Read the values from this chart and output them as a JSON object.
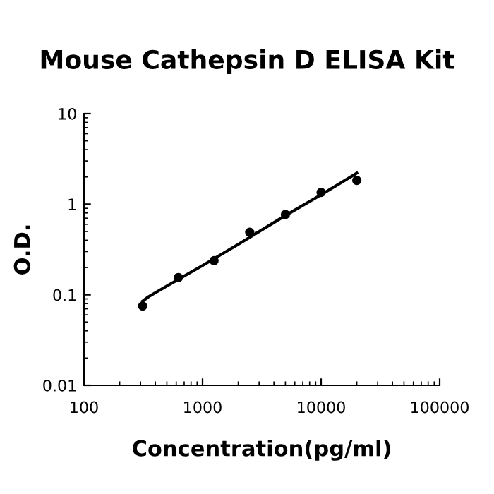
{
  "chart_data": {
    "type": "scatter",
    "title": "Mouse Cathepsin D ELISA Kit",
    "xlabel": "Concentration(pg/ml)",
    "ylabel": "O.D.",
    "log": "xy",
    "xlim": [
      100,
      100000
    ],
    "xticks": [
      100,
      1000,
      10000,
      100000
    ],
    "ylim": [
      0.01,
      10
    ],
    "yticks": [
      0.01,
      0.1,
      1,
      10
    ],
    "grid": false,
    "series": [
      {
        "color": "#000000",
        "marker": "circle",
        "x": [
          312.5,
          625,
          1250,
          2500,
          5000,
          10000,
          20000
        ],
        "values": [
          0.075,
          0.155,
          0.238,
          0.49,
          0.77,
          1.35,
          1.83
        ]
      },
      {
        "type": "line",
        "color": "#000000",
        "marker": "none",
        "line_style": "solid",
        "x": [
          312.5,
          350,
          500,
          1000,
          2000,
          5000,
          10000,
          20000
        ],
        "values": [
          0.085,
          0.095,
          0.125,
          0.21,
          0.36,
          0.75,
          1.27,
          2.2
        ]
      }
    ]
  }
}
